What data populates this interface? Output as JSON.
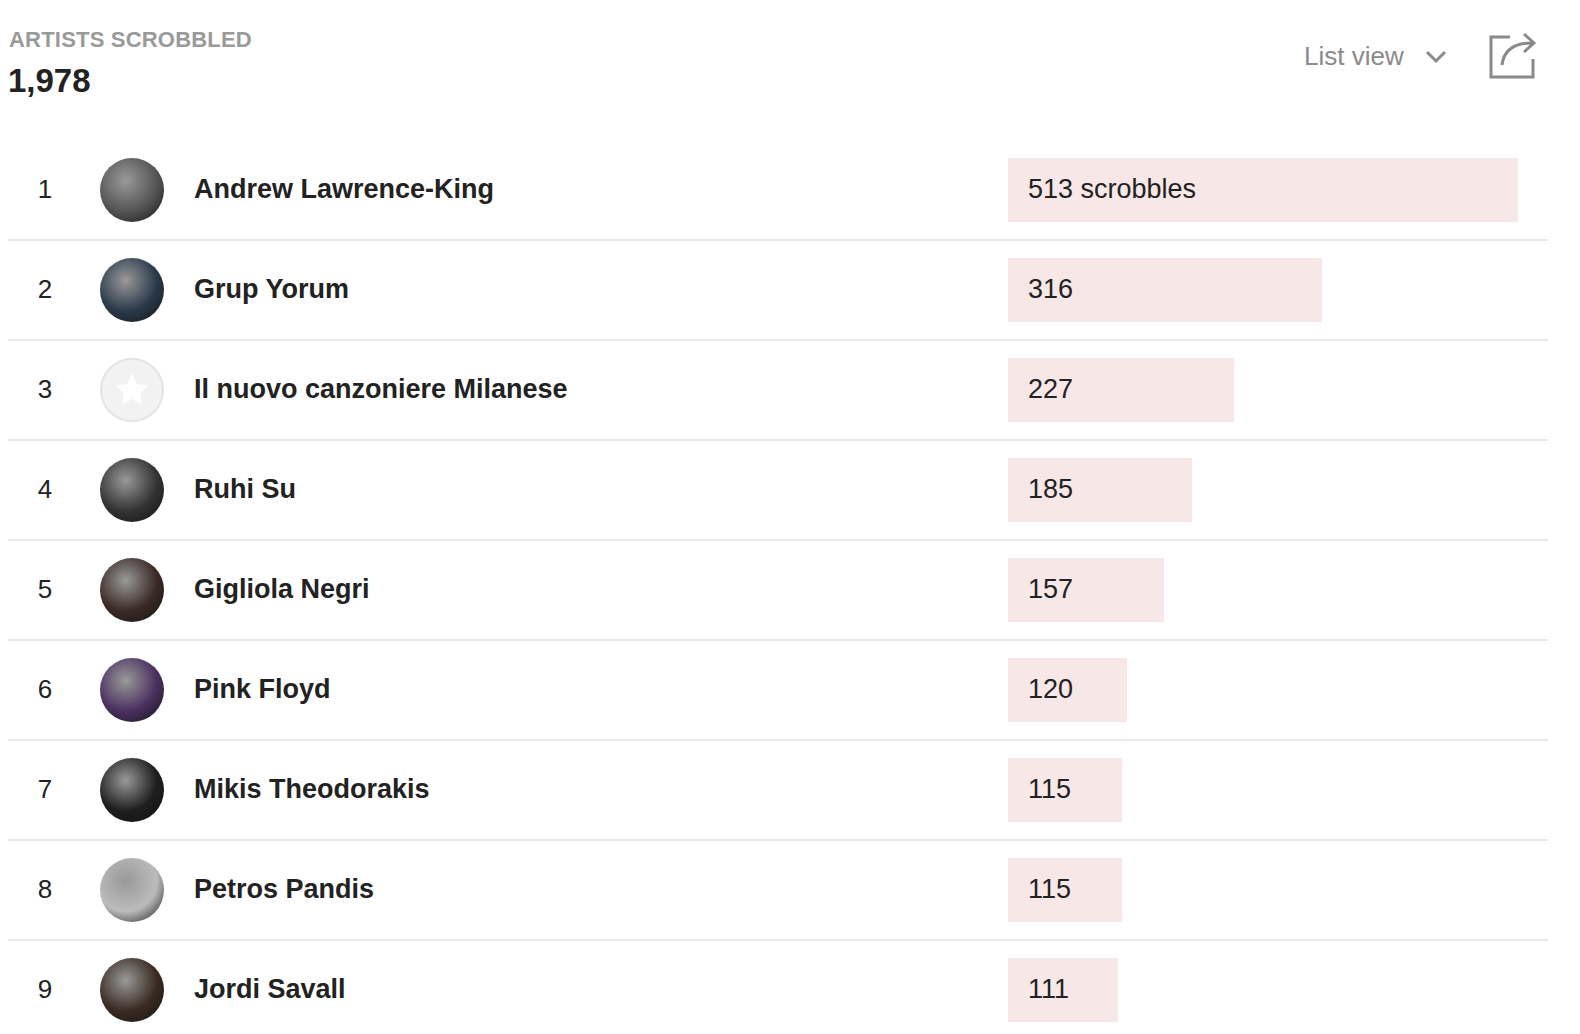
{
  "header": {
    "title": "ARTISTS SCROBBLED",
    "count": "1,978",
    "view": "List view"
  },
  "chart_data": {
    "type": "bar",
    "orientation": "horizontal",
    "ranks": [
      1,
      2,
      3,
      4,
      5,
      6,
      7,
      8,
      9
    ],
    "categories": [
      "Andrew Lawrence-King",
      "Grup Yorum",
      "Il nuovo canzoniere Milanese",
      "Ruhi Su",
      "Gigliola Negri",
      "Pink Floyd",
      "Mikis Theodorakis",
      "Petros Pandis",
      "Jordi Savall"
    ],
    "values": [
      513,
      316,
      227,
      185,
      157,
      120,
      115,
      115,
      111
    ],
    "value_labels": [
      "513 scrobbles",
      "316",
      "227",
      "185",
      "157",
      "120",
      "115",
      "115",
      "111"
    ],
    "color": "#f8e7e7",
    "xlim": [
      0,
      513
    ],
    "data_labels": true,
    "tick_labels": false,
    "grid": false
  }
}
